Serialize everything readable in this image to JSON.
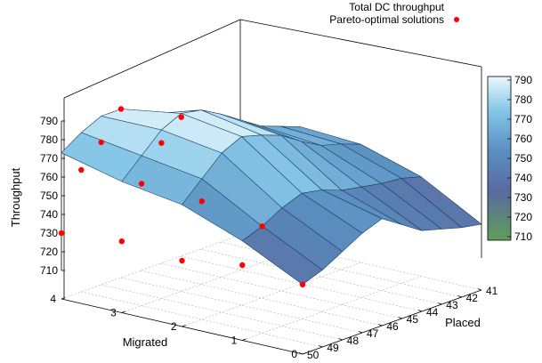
{
  "chart_data": {
    "type": "surface",
    "zlabel": "Throughput",
    "xlabel": "Migrated",
    "ylabel": "Placed",
    "x_ticks": [
      "0",
      "1",
      "2",
      "3",
      "4"
    ],
    "y_ticks": [
      "41",
      "42",
      "43",
      "44",
      "45",
      "46",
      "47",
      "48",
      "49",
      "50"
    ],
    "z_ticks": [
      "710",
      "720",
      "730",
      "740",
      "750",
      "760",
      "770",
      "780",
      "790"
    ],
    "zlim": [
      710,
      790
    ],
    "legend": [
      "Total DC throughput",
      "Pareto-optimal solutions"
    ],
    "legend_position": "top-right",
    "colorbar_ticks": [
      "710",
      "720",
      "730",
      "740",
      "750",
      "760",
      "770",
      "780",
      "790"
    ],
    "grid": true,
    "colors": {
      "pareto": "#ff0000",
      "colormap": [
        "#5e9e5a",
        "#5a6aa0",
        "#5a90c0",
        "#88c8e8",
        "#eaf8fc"
      ],
      "surface_edge": "#1a3f66"
    },
    "surface": {
      "migrated": [
        0,
        1,
        2,
        3,
        4
      ],
      "placed": [
        41,
        42,
        43,
        44,
        45,
        46,
        47,
        48,
        49,
        50
      ],
      "throughput": [
        [
          730,
          732,
          735,
          738,
          745,
          752,
          748,
          742,
          736,
          732
        ],
        [
          748,
          751,
          752,
          754,
          756,
          760,
          762,
          758,
          752,
          748
        ],
        [
          758,
          762,
          765,
          771,
          778,
          782,
          785,
          780,
          770,
          760
        ],
        [
          760,
          764,
          768,
          775,
          782,
          788,
          790,
          785,
          775,
          765
        ],
        [
          735,
          745,
          752,
          760,
          768,
          778,
          785,
          785,
          780,
          773
        ]
      ]
    },
    "pareto_points": [
      {
        "migrated": 4,
        "placed": 50,
        "throughput": 730
      },
      {
        "migrated": 4,
        "placed": 49,
        "throughput": 760
      },
      {
        "migrated": 4,
        "placed": 48,
        "throughput": 771
      },
      {
        "migrated": 4,
        "placed": 47,
        "throughput": 785
      },
      {
        "migrated": 3,
        "placed": 50,
        "throughput": 733
      },
      {
        "migrated": 3,
        "placed": 49,
        "throughput": 760
      },
      {
        "migrated": 3,
        "placed": 48,
        "throughput": 778
      },
      {
        "migrated": 3,
        "placed": 47,
        "throughput": 788
      },
      {
        "migrated": 2,
        "placed": 50,
        "throughput": 730
      },
      {
        "migrated": 2,
        "placed": 49,
        "throughput": 758
      },
      {
        "migrated": 1,
        "placed": 50,
        "throughput": 735
      },
      {
        "migrated": 1,
        "placed": 49,
        "throughput": 752
      },
      {
        "migrated": 0,
        "placed": 50,
        "throughput": 732
      }
    ]
  }
}
